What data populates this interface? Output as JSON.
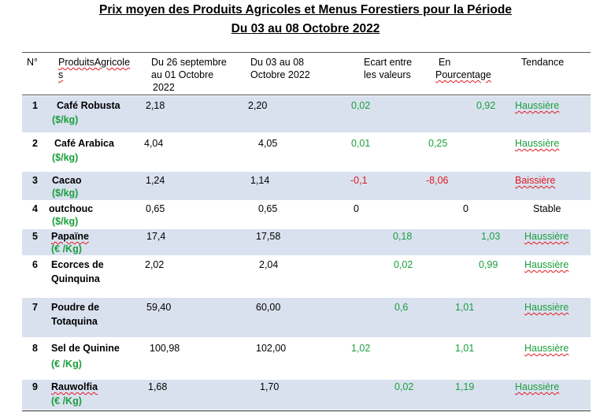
{
  "title": {
    "line1": "Prix moyen des Produits Agricoles et Menus Forestiers pour la Période",
    "line2": "Du 03 au 08 Octobre 2022"
  },
  "headers": {
    "num": "N°",
    "product_a": "ProduitsAgricole",
    "product_b": "s",
    "prev_1": "Du 26  septembre",
    "prev_2": "au 01  Octobre",
    "prev_3": "2022",
    "cur_1": "Du 03  au 08",
    "cur_2": "Octobre  2022",
    "gap_1": "Ecart entre",
    "gap_2": "les valeurs",
    "pct_1": "En",
    "pct_2": "Pourcentage",
    "trend": "Tendance"
  },
  "colors": {
    "shade": "#d9e1ef",
    "up": "#1a9f3c",
    "down": "#e0191f"
  },
  "rows": [
    {
      "num": "1",
      "product": "Café Robusta",
      "unit": "($/kg)",
      "prev": "2,18",
      "cur": "2,20",
      "ecart": "0,02",
      "pct": "0,92",
      "trend": "Haussière"
    },
    {
      "num": "2",
      "product": "Café Arabica",
      "unit": "($/kg)",
      "prev": "4,04",
      "cur": "4,05",
      "ecart": "0,01",
      "pct": "0,25",
      "trend": "Haussière"
    },
    {
      "num": "3",
      "product": "Cacao",
      "unit": "($/kg)",
      "prev": "1,24",
      "cur": "1,14",
      "ecart": "-0,1",
      "pct": "-8,06",
      "trend": "Baissière"
    },
    {
      "num": "4",
      "product": "outchouc",
      "unit": "($/kg)",
      "prev": "0,65",
      "cur": "0,65",
      "ecart": "0",
      "pct": "0",
      "trend": "Stable"
    },
    {
      "num": "5",
      "product": "Papaïne",
      "unit": "(€ /Kg)",
      "prev": "17,4",
      "cur": "17,58",
      "ecart": "0,18",
      "pct": "1,03",
      "trend": "Haussière"
    },
    {
      "num": "6",
      "product": "Ecorces de",
      "product2": "Quinquina",
      "prev": "2,02",
      "cur": "2,04",
      "ecart": "0,02",
      "pct": "0,99",
      "trend": "Haussière"
    },
    {
      "num": "7",
      "product": "Poudre de",
      "product2": "Totaquina",
      "prev": "59,40",
      "cur": "60,00",
      "ecart": "0,6",
      "pct": "1,01",
      "trend": "Haussière"
    },
    {
      "num": "8",
      "product": "Sel de Quinine",
      "unit": "(€ /Kg)",
      "prev": "100,98",
      "cur": "102,00",
      "ecart": "1,02",
      "pct": "1,01",
      "trend": "Haussière"
    },
    {
      "num": "9",
      "product": "Rauwolfia",
      "unit": "(€ /Kg)",
      "prev": "1,68",
      "cur": "1,70",
      "ecart": "0,02",
      "pct": "1,19",
      "trend": "Haussière"
    }
  ]
}
